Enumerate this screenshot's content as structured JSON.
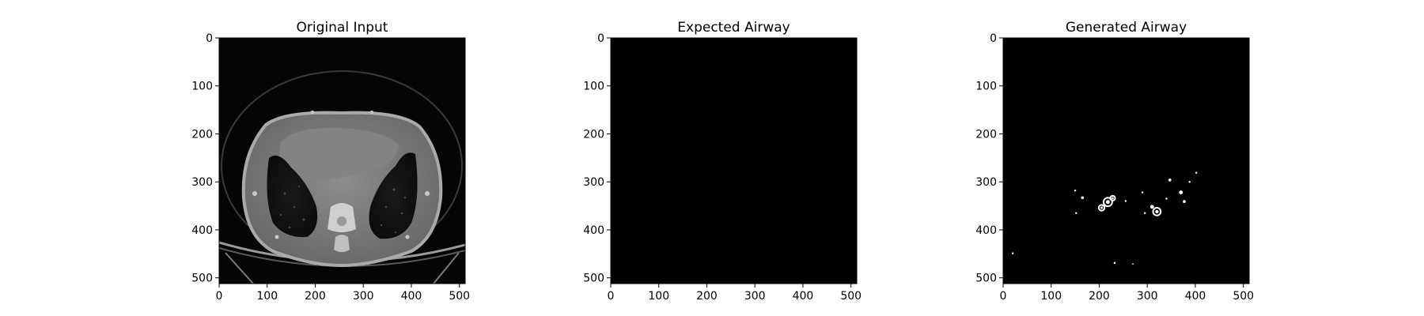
{
  "chart_data": [
    {
      "type": "image",
      "title": "Original Input",
      "xlim": [
        0,
        512
      ],
      "ylim": [
        512,
        0
      ],
      "xticks": [
        0,
        100,
        200,
        300,
        400,
        500
      ],
      "yticks": [
        0,
        100,
        200,
        300,
        400,
        500
      ],
      "colormap": "gray",
      "content": "ct-scan"
    },
    {
      "type": "image",
      "title": "Expected Airway",
      "xlim": [
        0,
        512
      ],
      "ylim": [
        512,
        0
      ],
      "xticks": [
        0,
        100,
        200,
        300,
        400,
        500
      ],
      "yticks": [
        0,
        100,
        200,
        300,
        400,
        500
      ],
      "colormap": "gray",
      "content": "empty-mask"
    },
    {
      "type": "image",
      "title": "Generated Airway",
      "xlim": [
        0,
        512
      ],
      "ylim": [
        512,
        0
      ],
      "xticks": [
        0,
        100,
        200,
        300,
        400,
        500
      ],
      "yticks": [
        0,
        100,
        200,
        300,
        400,
        500
      ],
      "colormap": "gray",
      "content": "airway-mask",
      "blobs": [
        {
          "x": 218,
          "y": 342,
          "r": 9
        },
        {
          "x": 205,
          "y": 354,
          "r": 6
        },
        {
          "x": 228,
          "y": 334,
          "r": 5
        },
        {
          "x": 320,
          "y": 362,
          "r": 8
        },
        {
          "x": 310,
          "y": 352,
          "r": 4
        },
        {
          "x": 370,
          "y": 322,
          "r": 4
        },
        {
          "x": 377,
          "y": 341,
          "r": 3
        },
        {
          "x": 165,
          "y": 333,
          "r": 3
        },
        {
          "x": 347,
          "y": 296,
          "r": 3
        },
        {
          "x": 255,
          "y": 340,
          "r": 2
        },
        {
          "x": 290,
          "y": 322,
          "r": 2
        },
        {
          "x": 152,
          "y": 365,
          "r": 2
        },
        {
          "x": 388,
          "y": 300,
          "r": 2
        },
        {
          "x": 402,
          "y": 281,
          "r": 2
        },
        {
          "x": 20,
          "y": 449,
          "r": 2
        },
        {
          "x": 232,
          "y": 469,
          "r": 2
        },
        {
          "x": 150,
          "y": 318,
          "r": 2
        },
        {
          "x": 340,
          "y": 335,
          "r": 2
        },
        {
          "x": 295,
          "y": 365,
          "r": 2
        },
        {
          "x": 270,
          "y": 471,
          "r": 1
        }
      ]
    }
  ]
}
